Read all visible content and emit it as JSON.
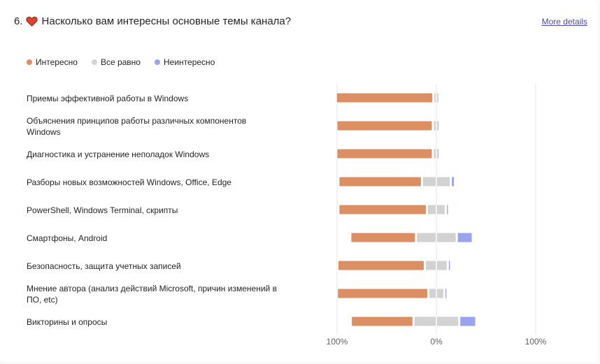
{
  "question": {
    "number": "6.",
    "text": "Насколько вам интересны основные темы канала?",
    "more_details": "More details"
  },
  "colors": {
    "interesting": "#dc8f63",
    "neutral": "#d2d2d2",
    "not_interesting": "#9aa3f0",
    "heart": "#d9442b"
  },
  "chart_data": {
    "type": "bar",
    "orientation": "horizontal-diverging",
    "legend": [
      "Интересно",
      "Все равно",
      "Неинтересно"
    ],
    "legend_position": "top-left",
    "categories": [
      "Приемы эффективной работы в Windows",
      "Объяснения принципов работы различных компонентов Windows",
      "Диагностика и устранение неполадок Windows",
      "Разборы новых возможностей Windows, Office, Edge",
      "PowerShell, Windows Terminal, скрипты",
      "Смартфоны, Android",
      "Безопасность, защита учетных записей",
      "Мнение автора (анализ действий Microsoft, причин изменений в ПО, etc)",
      "Викторины и опросы"
    ],
    "series": [
      {
        "name": "Интересно",
        "values": [
          96,
          95,
          95,
          82,
          87,
          64,
          86,
          90,
          61
        ]
      },
      {
        "name": "Все равно",
        "values": [
          4,
          5,
          5,
          27,
          17,
          39,
          21,
          14,
          44
        ]
      },
      {
        "name": "Неинтересно",
        "values": [
          0,
          0,
          0,
          2,
          1,
          14,
          1,
          1,
          15
        ]
      }
    ],
    "xlim": [
      -100,
      100
    ],
    "tick_labels": [
      "100%",
      "0%",
      "100%"
    ],
    "grid": true
  }
}
